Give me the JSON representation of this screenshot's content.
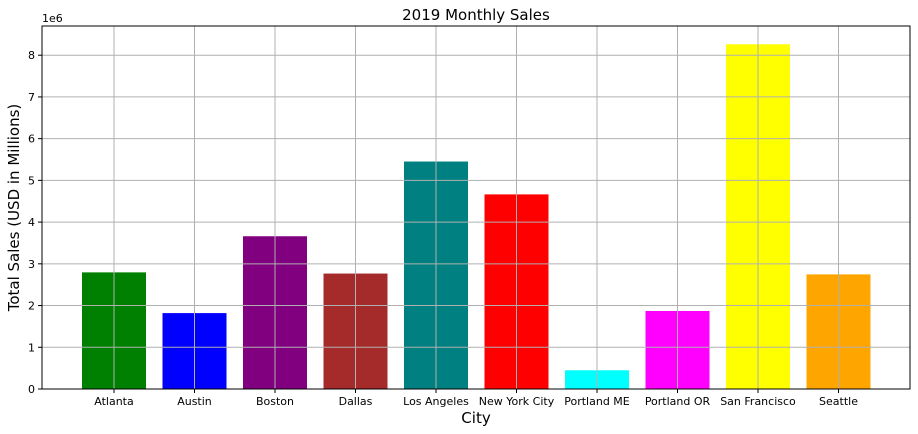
{
  "chart_data": {
    "type": "bar",
    "title": "2019 Monthly Sales",
    "xlabel": "City",
    "ylabel": "Total Sales (USD in Millions)",
    "y_offset_label": "1e6",
    "categories": [
      "Atlanta",
      "Austin",
      "Boston",
      "Dallas",
      "Los Angeles",
      "New York City",
      "Portland ME",
      "Portland OR",
      "San Francisco",
      "Seattle"
    ],
    "values": [
      2795000,
      1819000,
      3661000,
      2767000,
      5452000,
      4664000,
      449000,
      1870000,
      8262000,
      2747000
    ],
    "bar_colors": [
      "#008000",
      "#0000ff",
      "#800080",
      "#a52a2a",
      "#008080",
      "#ff0000",
      "#00ffff",
      "#ff00ff",
      "#ffff00",
      "#ffa500"
    ],
    "y_ticks": [
      0,
      1,
      2,
      3,
      4,
      5,
      6,
      7,
      8
    ],
    "ylim": [
      0,
      8700000
    ],
    "grid": true,
    "legend": "none"
  }
}
